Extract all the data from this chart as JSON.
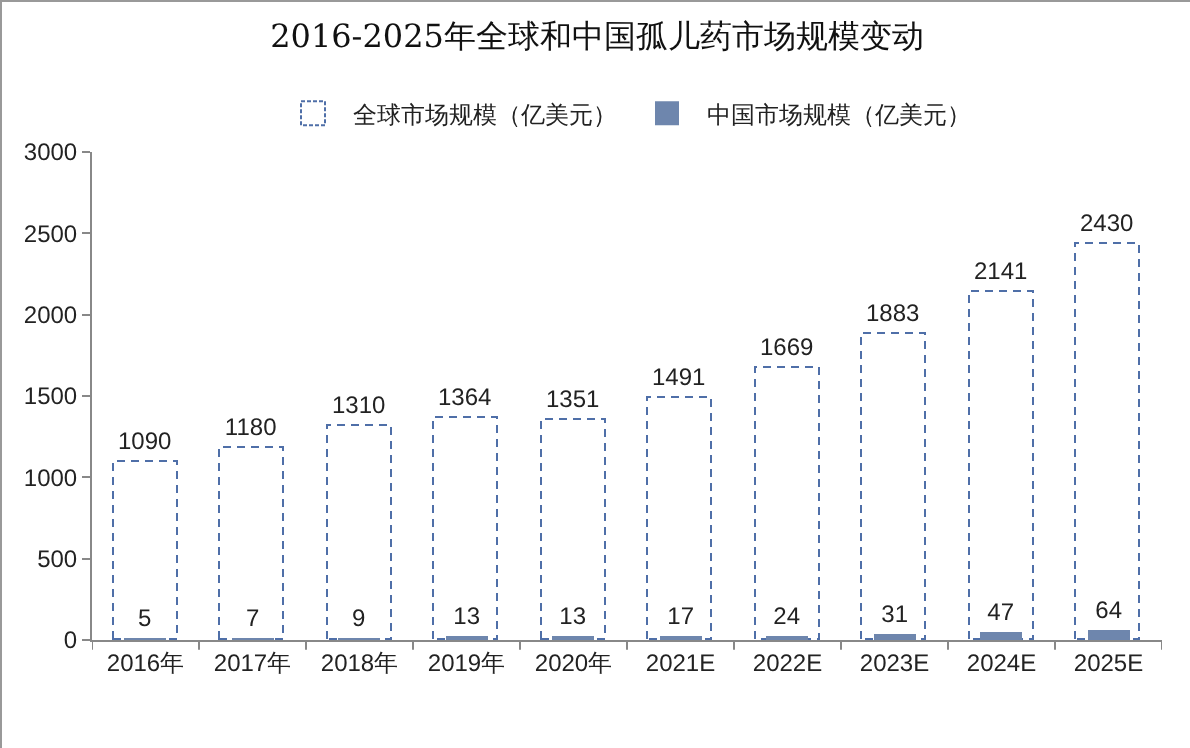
{
  "chart_data": {
    "type": "bar",
    "title": "2016-2025年全球和中国孤儿药市场规模变动",
    "categories": [
      "2016年",
      "2017年",
      "2018年",
      "2019年",
      "2020年",
      "2021E",
      "2022E",
      "2023E",
      "2024E",
      "2025E"
    ],
    "series": [
      {
        "name": "全球市场规模（亿美元）",
        "color": "#4f6fa8",
        "line_style": "dashed",
        "values": [
          1090,
          1180,
          1310,
          1364,
          1351,
          1491,
          1669,
          1883,
          2141,
          2430
        ]
      },
      {
        "name": "中国市场规模（亿美元）",
        "color": "#6e86ad",
        "values": [
          5,
          7,
          9,
          13,
          13,
          17,
          24,
          31,
          47,
          64
        ]
      }
    ],
    "ylim": [
      0,
      3000
    ],
    "yticks": [
      0,
      500,
      1000,
      1500,
      2000,
      2500,
      3000
    ],
    "data_labels": true,
    "legend": "top"
  }
}
